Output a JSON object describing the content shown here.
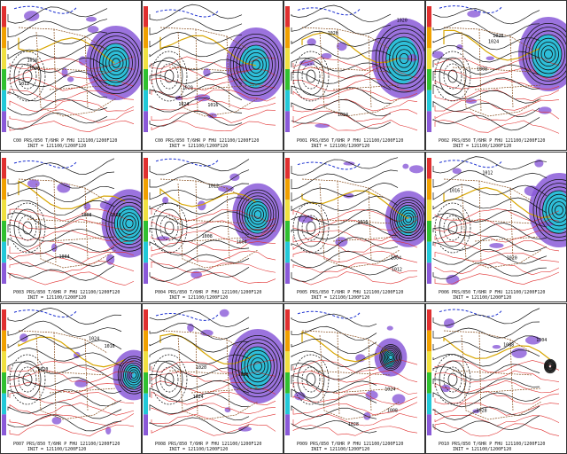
{
  "panels": [
    {
      "caption": "C00  PRS/850 T/6HR P FHU 121100/1200F120",
      "init": "INIT = 121100/1200F120"
    },
    {
      "caption": "C00  PRS/850 T/6HR P FHU 121100/1200F120",
      "init": "INIT = 121100/1200F120"
    },
    {
      "caption": "P001 PRS/850 T/6HR P FHU 121100/1200F120",
      "init": "INIT = 121100/1200F120"
    },
    {
      "caption": "P002 PRS/850 T/6HR P FHU 121100/1200F120",
      "init": "INIT = 121100/1200F120"
    },
    {
      "caption": "P003 PRS/850 T/6HR P FHU 121100/1200F120",
      "init": "INIT = 121100/1200F120"
    },
    {
      "caption": "P004 PRS/850 T/6HR P FHU 121100/1200F120",
      "init": "INIT = 121100/1200F120"
    },
    {
      "caption": "P005 PRS/850 T/6HR P FHU 121100/1200F120",
      "init": "INIT = 121100/1200F120"
    },
    {
      "caption": "P006 PRS/850 T/6HR P FHU 121100/1200F120",
      "init": "INIT = 121100/1200F120"
    },
    {
      "caption": "P007 PRS/850 T/6HR P FHU 121100/1200F120",
      "init": "INIT = 121100/1200F120"
    },
    {
      "caption": "P008 PRS/850 T/6HR P FHU 121100/1200F120",
      "init": "INIT = 121100/1200F120"
    },
    {
      "caption": "P009 PRS/850 T/6HR P FHU 121100/1200F120",
      "init": "INIT = 121100/1200F120"
    },
    {
      "caption": "P010 PRS/850 T/6HR P FHU 121100/1200F120",
      "init": "INIT = 121100/1200F120"
    }
  ],
  "colors": {
    "isobar": "#111111",
    "isotherm_cold": "#1a2fd0",
    "isotherm_warm": "#e03030",
    "freezing_line": "#d8a600",
    "precip_light": "#8a5ad8",
    "precip_heavy": "#22c8d8",
    "border": "#8a5020"
  },
  "colorbar": [
    "#e03030",
    "#f0a000",
    "#f0e040",
    "#30c030",
    "#22c8d8",
    "#8a5ad8"
  ],
  "pressure_labels": [
    "1012",
    "1016",
    "1020",
    "1024",
    "1028",
    "1008",
    "1004"
  ]
}
